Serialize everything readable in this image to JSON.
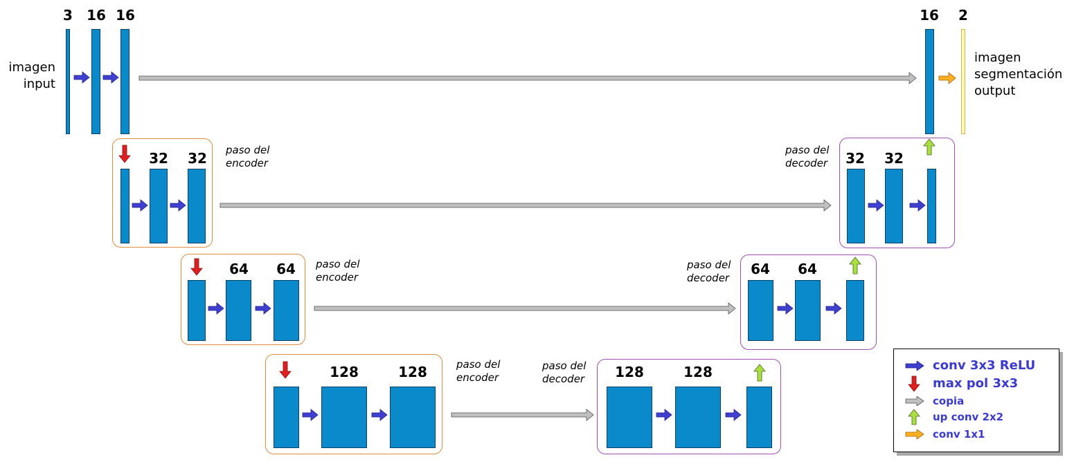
{
  "colors": {
    "layer": "#0a8acb",
    "output_layer": "#fff7b8",
    "conv": "#4040d0",
    "maxpool": "#e02020",
    "copy": "#c0c0c0",
    "upconv": "#a8e040",
    "conv1x1": "#ffb020",
    "encoder_border": "#e08a3c",
    "decoder_border": "#9b4fb0"
  },
  "labels": {
    "input": "imagen\ninput",
    "output": "imagen\nsegmentación\noutput",
    "encoder_step": "paso del\nencoder",
    "decoder_step": "paso del\ndecoder"
  },
  "channels": {
    "level0_enc": [
      "3",
      "16",
      "16"
    ],
    "level0_dec": [
      "16",
      "2"
    ],
    "level1_enc": [
      "32",
      "32"
    ],
    "level1_dec": [
      "32",
      "32"
    ],
    "level2_enc": [
      "64",
      "64"
    ],
    "level2_dec": [
      "64",
      "64"
    ],
    "level3_enc": [
      "128",
      "128"
    ],
    "level3_dec": [
      "128",
      "128"
    ]
  },
  "legend": [
    {
      "icon": "conv-arrow-icon",
      "label": "conv  3x3  ReLU"
    },
    {
      "icon": "maxpool-arrow-icon",
      "label": "max  pol  3x3"
    },
    {
      "icon": "copy-arrow-icon",
      "label": "copia"
    },
    {
      "icon": "upconv-arrow-icon",
      "label": "up conv 2x2"
    },
    {
      "icon": "conv1x1-arrow-icon",
      "label": "conv 1x1"
    }
  ]
}
